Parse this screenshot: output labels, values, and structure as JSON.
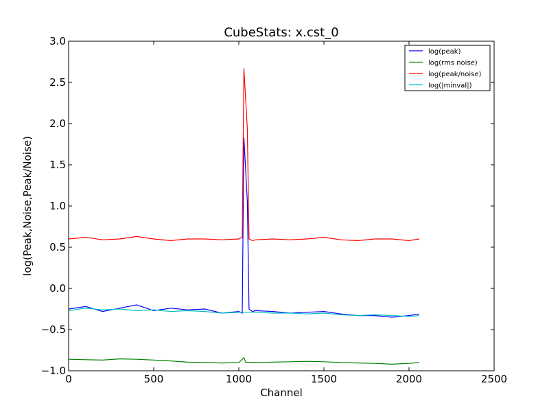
{
  "chart_data": {
    "type": "line",
    "title": "CubeStats: x.cst_0",
    "xlabel": "Channel",
    "ylabel": "log(Peak,Noise,Peak/Noise)",
    "xlim": [
      0,
      2500
    ],
    "ylim": [
      -1.0,
      3.0
    ],
    "xticks": [
      0,
      500,
      1000,
      1500,
      2000,
      2500
    ],
    "xtick_labels": [
      "0",
      "500",
      "1000",
      "1500",
      "2000",
      "2500"
    ],
    "yticks": [
      -1.0,
      -0.5,
      0.0,
      0.5,
      1.0,
      1.5,
      2.0,
      2.5,
      3.0
    ],
    "ytick_labels": [
      "−1.0",
      "−0.5",
      "0.0",
      "0.5",
      "1.0",
      "1.5",
      "2.0",
      "2.5",
      "3.0"
    ],
    "grid": false,
    "legend_position": "top-right",
    "series": [
      {
        "name": "log(peak)",
        "color": "#0000ff",
        "x": [
          0,
          100,
          200,
          300,
          400,
          500,
          600,
          700,
          800,
          900,
          1000,
          1020,
          1030,
          1040,
          1050,
          1060,
          1080,
          1100,
          1200,
          1300,
          1400,
          1500,
          1600,
          1700,
          1800,
          1900,
          2000,
          2060
        ],
        "y": [
          -0.25,
          -0.22,
          -0.28,
          -0.24,
          -0.2,
          -0.27,
          -0.24,
          -0.26,
          -0.25,
          -0.3,
          -0.28,
          -0.3,
          1.83,
          1.45,
          1.05,
          -0.25,
          -0.28,
          -0.27,
          -0.28,
          -0.3,
          -0.29,
          -0.28,
          -0.31,
          -0.33,
          -0.33,
          -0.35,
          -0.33,
          -0.31
        ]
      },
      {
        "name": "log(rms noise)",
        "color": "#008000",
        "x": [
          0,
          100,
          200,
          300,
          400,
          500,
          600,
          700,
          800,
          900,
          1000,
          1030,
          1040,
          1100,
          1200,
          1300,
          1400,
          1500,
          1600,
          1700,
          1800,
          1900,
          2000,
          2060
        ],
        "y": [
          -0.86,
          -0.865,
          -0.87,
          -0.855,
          -0.86,
          -0.87,
          -0.88,
          -0.895,
          -0.9,
          -0.905,
          -0.9,
          -0.84,
          -0.895,
          -0.9,
          -0.895,
          -0.89,
          -0.885,
          -0.89,
          -0.9,
          -0.905,
          -0.91,
          -0.92,
          -0.91,
          -0.9
        ]
      },
      {
        "name": "log(peak/noise)",
        "color": "#ff0000",
        "x": [
          0,
          100,
          200,
          300,
          400,
          500,
          600,
          700,
          800,
          900,
          1000,
          1020,
          1030,
          1040,
          1050,
          1060,
          1080,
          1100,
          1200,
          1300,
          1400,
          1500,
          1600,
          1700,
          1800,
          1900,
          2000,
          2060
        ],
        "y": [
          0.6,
          0.62,
          0.59,
          0.6,
          0.63,
          0.6,
          0.58,
          0.6,
          0.6,
          0.59,
          0.6,
          0.62,
          2.67,
          2.3,
          1.94,
          0.6,
          0.58,
          0.59,
          0.6,
          0.59,
          0.6,
          0.62,
          0.59,
          0.58,
          0.6,
          0.6,
          0.58,
          0.6
        ]
      },
      {
        "name": "log(|minval|)",
        "color": "#00bfbf",
        "x": [
          0,
          100,
          200,
          300,
          400,
          500,
          600,
          700,
          800,
          900,
          1000,
          1100,
          1200,
          1300,
          1400,
          1500,
          1600,
          1700,
          1800,
          1900,
          2000,
          2060
        ],
        "y": [
          -0.27,
          -0.24,
          -0.26,
          -0.25,
          -0.27,
          -0.26,
          -0.28,
          -0.27,
          -0.28,
          -0.3,
          -0.29,
          -0.29,
          -0.3,
          -0.3,
          -0.31,
          -0.3,
          -0.32,
          -0.33,
          -0.32,
          -0.33,
          -0.34,
          -0.33
        ]
      }
    ]
  }
}
